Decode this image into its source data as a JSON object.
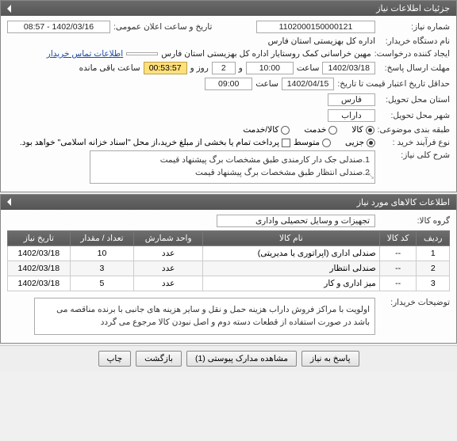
{
  "colors": {
    "headerBg": "#5f5f5f",
    "headerText": "#ffffff",
    "border": "#aaaaaa",
    "link": "#1a4aa0",
    "timerBg": "#ffe07a"
  },
  "panel1": {
    "title": "جزئیات اطلاعات نیاز",
    "rows": {
      "need_number_label": "شماره نیاز:",
      "need_number": "1102000150000121",
      "public_announce_label": "تاریخ و ساعت اعلان عمومی:",
      "public_announce": "1402/03/16 - 08:57",
      "buyer_org_label": "نام دستگاه خریدار:",
      "buyer_org": "اداره کل بهزیستی استان فارس",
      "requester_label": "ایجاد کننده درخواست:",
      "requester": "مهین خراسانی کمک روستایار اداره کل بهزیستی استان فارس",
      "contact_link": "اطلاعات تماس خریدار",
      "deadline_label": "مهلت ارسال پاسخ:",
      "deadline_date": "1402/03/18",
      "time_label": "ساعت",
      "deadline_time": "10:00",
      "and_label": "و",
      "days": "2",
      "days_label": "روز و",
      "timer": "00:53:57",
      "remaining_label": "ساعت باقی مانده",
      "validity_label": "حداقل تاریخ اعتبار قیمت تا تاریخ:",
      "validity_date": "1402/04/15",
      "validity_time": "09:00",
      "province_label": "استان محل تحویل:",
      "province": "فارس",
      "city_label": "شهر محل تحویل:",
      "city": "داراب",
      "category_label": "طبقه بندی موضوعی:",
      "cat_goods": "کالا",
      "cat_service": "خدمت",
      "cat_goods_service": "کالا/خدمت",
      "process_label": "نوع فرآیند خرید :",
      "process_part": "جزیی",
      "process_medium": "متوسط",
      "process_note_prefix": "",
      "process_checkbox": "پرداخت تمام یا بخشی از مبلغ خرید،از محل \"اسناد خزانه اسلامی\" خواهد بود.",
      "desc_label": "شرح کلی نیاز:",
      "desc_line1": "1.صندلی جک دار کارمندی طبق مشخصات برگ پیشنهاد قیمت",
      "desc_line2": "2.صندلی انتظار طبق مشخصات برگ پیشنهاد قیمت"
    }
  },
  "panel2": {
    "title": "اطلاعات کالاهای مورد نیاز",
    "group_label": "گروه کالا:",
    "group_value": "تجهیزات و وسایل تحصیلی واداری",
    "columns": {
      "row": "ردیف",
      "code": "کد کالا",
      "name": "نام کالا",
      "unit": "واحد شمارش",
      "qty": "تعداد / مقدار",
      "date": "تاریخ نیاز"
    },
    "rows": [
      {
        "idx": "1",
        "code": "--",
        "name": "صندلی اداری (اپراتوری یا مدیریتی)",
        "unit": "عدد",
        "qty": "10",
        "date": "1402/03/18"
      },
      {
        "idx": "2",
        "code": "--",
        "name": "صندلی انتظار",
        "unit": "عدد",
        "qty": "3",
        "date": "1402/03/18"
      },
      {
        "idx": "3",
        "code": "--",
        "name": "میز اداری و کار",
        "unit": "عدد",
        "qty": "5",
        "date": "1402/03/18"
      }
    ],
    "notes_label": "توضیحات خریدار:",
    "notes": "اولویت با مراکز فروش داراب هزینه حمل و نقل و سایر هزینه های جانبی با برنده مناقصه می باشد در صورت استفاده از قطعات دسته دوم و اصل نبودن کالا مرجوع می گردد"
  },
  "footer": {
    "respond": "پاسخ به نیاز",
    "attachments": "مشاهده مدارک پیوستی (1)",
    "back": "بازگشت",
    "print": "چاپ"
  }
}
